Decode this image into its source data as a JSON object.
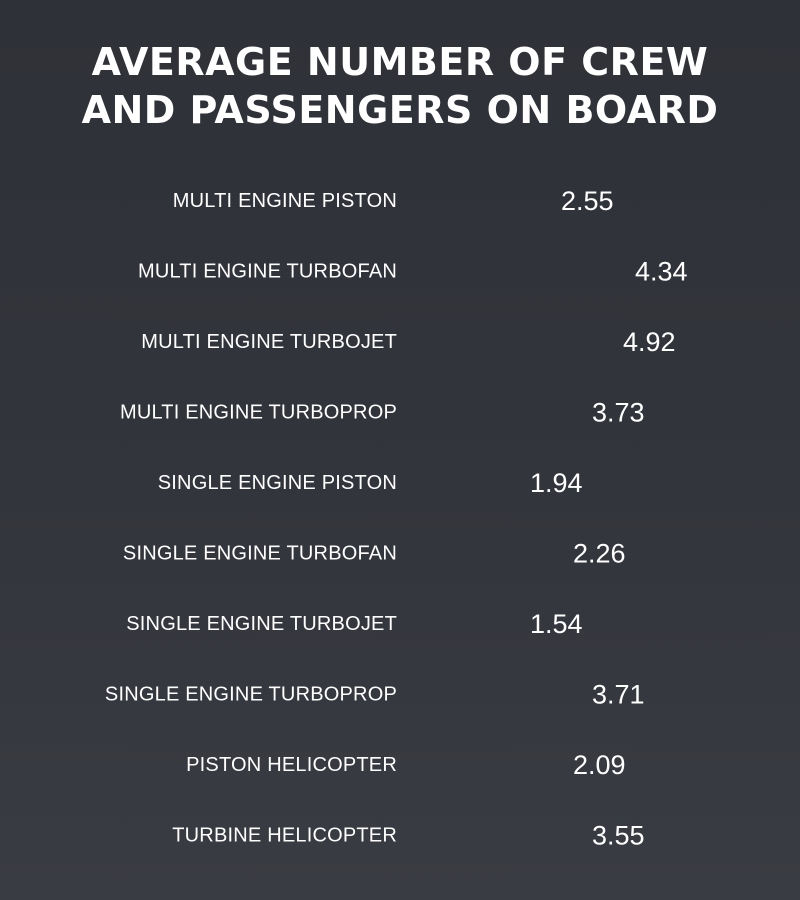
{
  "title_lines": [
    "AVERAGE NUMBER OF CREW",
    "AND PASSENGERS ON BOARD"
  ],
  "colors": {
    "background": "#33353c",
    "icon": "#29b9ee",
    "text": "#ffffff"
  },
  "icon_name": "person-icon",
  "chart_data": {
    "type": "bar",
    "title": "AVERAGE NUMBER OF CREW AND PASSENGERS ON BOARD",
    "categories": [
      "MULTI ENGINE PISTON",
      "MULTI ENGINE TURBOFAN",
      "MULTI ENGINE TURBOJET",
      "MULTI ENGINE TURBOPROP",
      "SINGLE ENGINE PISTON",
      "SINGLE ENGINE TURBOFAN",
      "SINGLE ENGINE TURBOJET",
      "SINGLE ENGINE TURBOPROP",
      "PISTON HELICOPTER",
      "TURBINE HELICOPTER"
    ],
    "values": [
      2.55,
      4.34,
      4.92,
      3.73,
      1.94,
      2.26,
      1.54,
      3.71,
      2.09,
      3.55
    ],
    "value_labels": [
      "2.55",
      "4.34",
      "4.92",
      "3.73",
      "1.94",
      "2.26",
      "1.54",
      "3.71",
      "2.09",
      "3.55"
    ],
    "unit_icon": "person-icon"
  }
}
